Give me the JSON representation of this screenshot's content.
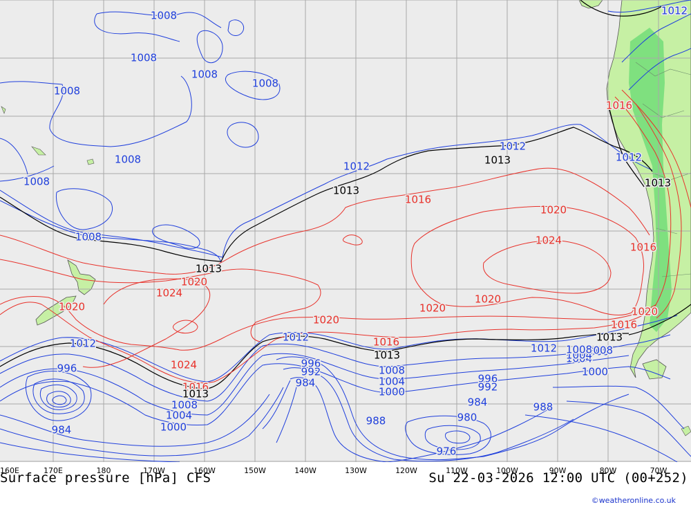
{
  "map": {
    "title": "Surface pressure [hPa] CFS",
    "valid_time": "Su 22-03-2026 12:00 UTC (00+252)",
    "credit": "©weatheronline.co.uk",
    "longitude_labels": [
      "160E",
      "170E",
      "180",
      "170W",
      "160W",
      "150W",
      "140W",
      "130W",
      "120W",
      "110W",
      "100W",
      "90W",
      "80W",
      "70W"
    ],
    "colors": {
      "ocean": "#ececec",
      "land": "#c6f0a4",
      "land_bright": "#7fe07f",
      "grid": "#a8a8a8",
      "low_isobar": "#1f3fdc",
      "high_isobar": "#e8312a",
      "ref_isobar": "#000000"
    },
    "contour_labels": [
      {
        "text": "1008",
        "color": "blue"
      },
      {
        "text": "1008",
        "color": "blue"
      },
      {
        "text": "1008",
        "color": "blue"
      },
      {
        "text": "1008",
        "color": "blue"
      },
      {
        "text": "1008",
        "color": "blue"
      },
      {
        "text": "1008",
        "color": "blue"
      },
      {
        "text": "1008",
        "color": "blue"
      },
      {
        "text": "1008",
        "color": "blue"
      },
      {
        "text": "1012",
        "color": "blue"
      },
      {
        "text": "1012",
        "color": "blue"
      },
      {
        "text": "1012",
        "color": "blue"
      },
      {
        "text": "1012",
        "color": "blue"
      },
      {
        "text": "1013",
        "color": "black"
      },
      {
        "text": "1013",
        "color": "black"
      },
      {
        "text": "1013",
        "color": "black"
      },
      {
        "text": "1016",
        "color": "red"
      },
      {
        "text": "1016",
        "color": "red"
      },
      {
        "text": "1020",
        "color": "red"
      },
      {
        "text": "1024",
        "color": "red"
      },
      {
        "text": "1016",
        "color": "red"
      },
      {
        "text": "1013",
        "color": "black"
      },
      {
        "text": "1020",
        "color": "red"
      },
      {
        "text": "1024",
        "color": "red"
      },
      {
        "text": "1020",
        "color": "red"
      },
      {
        "text": "1020",
        "color": "red"
      },
      {
        "text": "1020",
        "color": "red"
      },
      {
        "text": "1020",
        "color": "red"
      },
      {
        "text": "1016",
        "color": "red"
      },
      {
        "text": "1020",
        "color": "red"
      },
      {
        "text": "1012",
        "color": "blue"
      },
      {
        "text": "1012",
        "color": "blue"
      },
      {
        "text": "1016",
        "color": "red"
      },
      {
        "text": "1013",
        "color": "black"
      },
      {
        "text": "1012",
        "color": "blue"
      },
      {
        "text": "1013",
        "color": "black"
      },
      {
        "text": "1008",
        "color": "blue"
      },
      {
        "text": "1004",
        "color": "blue"
      },
      {
        "text": "1000",
        "color": "blue"
      },
      {
        "text": "996",
        "color": "blue"
      },
      {
        "text": "984",
        "color": "blue"
      },
      {
        "text": "1024",
        "color": "red"
      },
      {
        "text": "1016",
        "color": "red"
      },
      {
        "text": "1013",
        "color": "black"
      },
      {
        "text": "1008",
        "color": "blue"
      },
      {
        "text": "1004",
        "color": "blue"
      },
      {
        "text": "1000",
        "color": "blue"
      },
      {
        "text": "996",
        "color": "blue"
      },
      {
        "text": "992",
        "color": "blue"
      },
      {
        "text": "984",
        "color": "blue"
      },
      {
        "text": "1008",
        "color": "blue"
      },
      {
        "text": "1004",
        "color": "blue"
      },
      {
        "text": "1000",
        "color": "blue"
      },
      {
        "text": "988",
        "color": "blue"
      },
      {
        "text": "996",
        "color": "blue"
      },
      {
        "text": "992",
        "color": "blue"
      },
      {
        "text": "984",
        "color": "blue"
      },
      {
        "text": "980",
        "color": "blue"
      },
      {
        "text": "976",
        "color": "blue"
      },
      {
        "text": "988",
        "color": "blue"
      },
      {
        "text": "1008",
        "color": "blue"
      },
      {
        "text": "1004",
        "color": "blue"
      },
      {
        "text": "1000",
        "color": "blue"
      },
      {
        "text": "1020",
        "color": "red"
      },
      {
        "text": "1008",
        "color": "blue"
      }
    ]
  }
}
